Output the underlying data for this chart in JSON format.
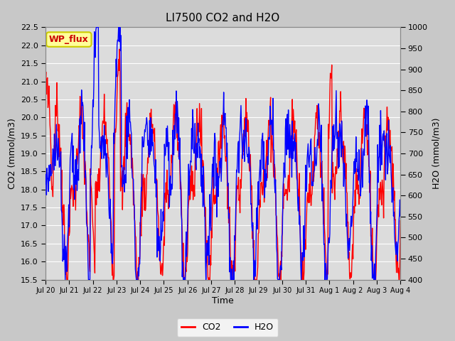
{
  "title": "LI7500 CO2 and H2O",
  "xlabel": "Time",
  "ylabel_left": "CO2 (mmol/m3)",
  "ylabel_right": "H2O (mmol/m3)",
  "ylim_left": [
    15.5,
    22.5
  ],
  "ylim_right": [
    400,
    1000
  ],
  "yticks_left": [
    15.5,
    16.0,
    16.5,
    17.0,
    17.5,
    18.0,
    18.5,
    19.0,
    19.5,
    20.0,
    20.5,
    21.0,
    21.5,
    22.0,
    22.5
  ],
  "yticks_right": [
    400,
    450,
    500,
    550,
    600,
    650,
    700,
    750,
    800,
    850,
    900,
    950,
    1000
  ],
  "xtick_labels": [
    "Jul 20",
    "Jul 21",
    "Jul 22",
    "Jul 23",
    "Jul 24",
    "Jul 25",
    "Jul 26",
    "Jul 27",
    "Jul 28",
    "Jul 29",
    "Jul 30",
    "Jul 31",
    "Aug 1",
    "Aug 2",
    "Aug 3",
    "Aug 4"
  ],
  "n_xticks": 16,
  "wp_flux_label": "WP_flux",
  "wp_flux_bg": "#ffff99",
  "wp_flux_border": "#cccc00",
  "wp_flux_text_color": "#cc0000",
  "co2_color": "#ff0000",
  "h2o_color": "#0000ff",
  "fig_bg": "#c8c8c8",
  "plot_bg": "#dcdcdc",
  "grid_color": "#ffffff",
  "line_width": 1.0
}
